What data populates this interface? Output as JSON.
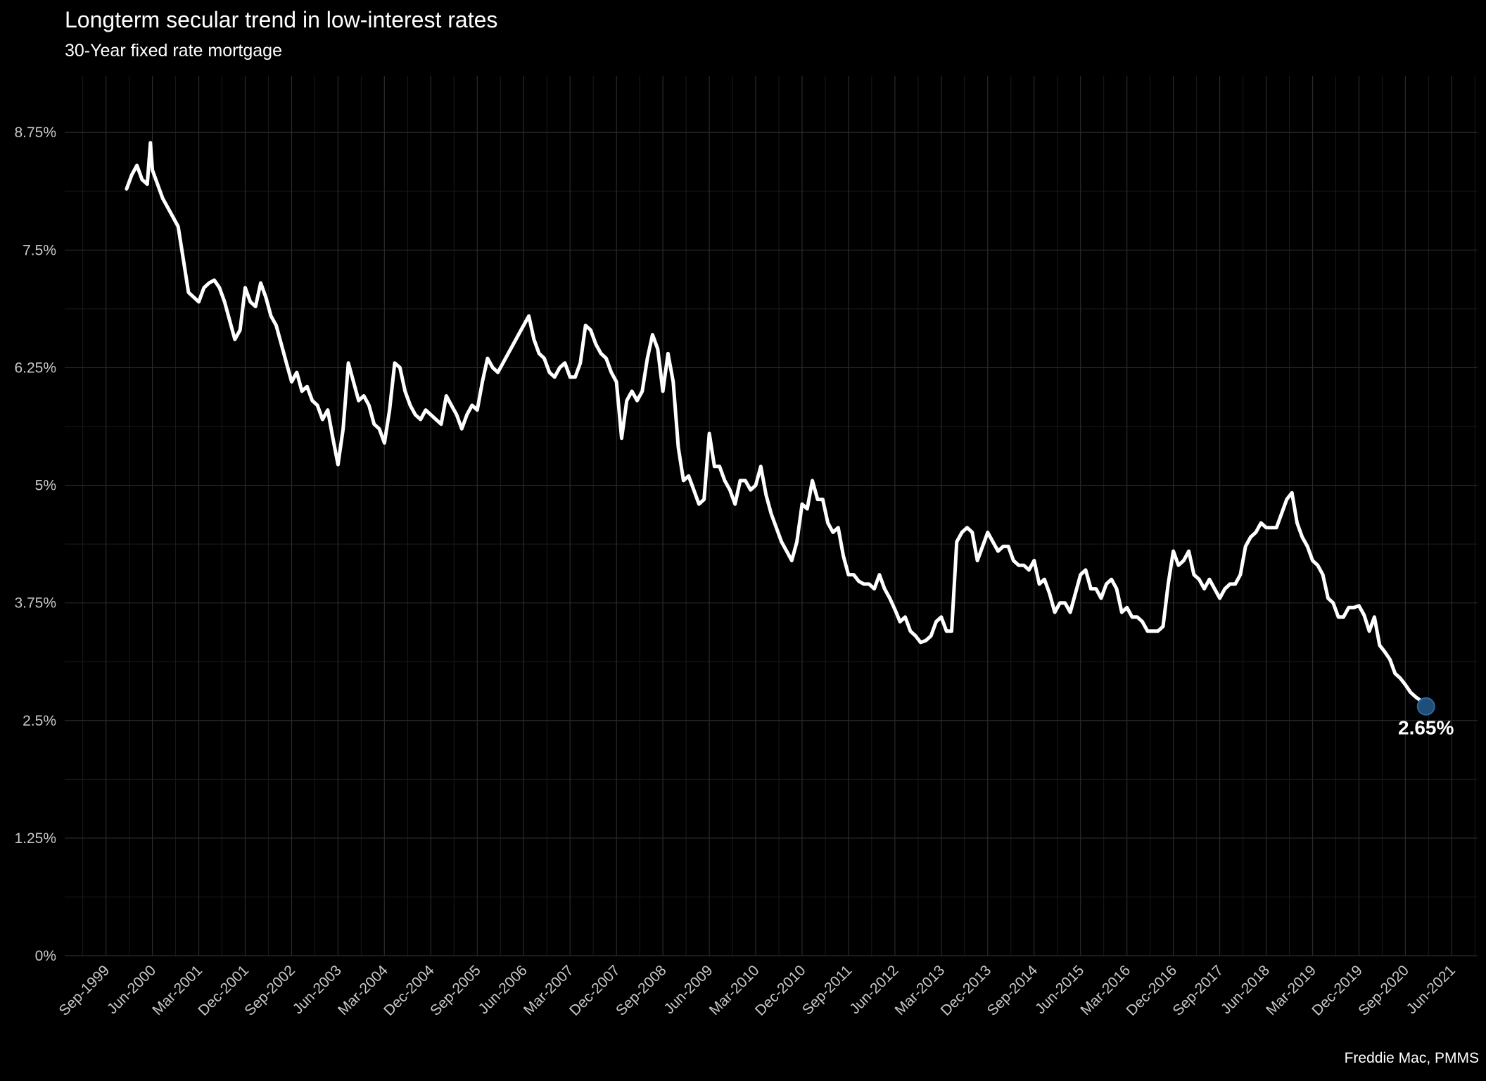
{
  "chart_data": {
    "type": "line",
    "title": "Longterm secular trend in low-interest rates",
    "subtitle": "30-Year fixed rate mortgage",
    "caption": "Freddie Mac, PMMS",
    "xlabel": "",
    "ylabel": "",
    "ylim": [
      0,
      9.35
    ],
    "xlim": [
      "1999-01",
      "2021-11"
    ],
    "y_ticks": [
      {
        "value": 0,
        "label": "0%"
      },
      {
        "value": 1.25,
        "label": "1.25%"
      },
      {
        "value": 2.5,
        "label": "2.5%"
      },
      {
        "value": 3.75,
        "label": "3.75%"
      },
      {
        "value": 5,
        "label": "5%"
      },
      {
        "value": 6.25,
        "label": "6.25%"
      },
      {
        "value": 7.5,
        "label": "7.5%"
      },
      {
        "value": 8.75,
        "label": "8.75%"
      }
    ],
    "x_ticks": [
      "Sep-1999",
      "Jun-2000",
      "Mar-2001",
      "Dec-2001",
      "Sep-2002",
      "Jun-2003",
      "Mar-2004",
      "Dec-2004",
      "Sep-2005",
      "Jun-2006",
      "Mar-2007",
      "Dec-2007",
      "Sep-2008",
      "Jun-2009",
      "Mar-2010",
      "Dec-2010",
      "Sep-2011",
      "Jun-2012",
      "Mar-2013",
      "Dec-2013",
      "Sep-2014",
      "Jun-2015",
      "Mar-2016",
      "Dec-2016",
      "Sep-2017",
      "Jun-2018",
      "Mar-2019",
      "Dec-2019",
      "Sep-2020",
      "Jun-2021"
    ],
    "grid": true,
    "series": [
      {
        "color": "#ffffff",
        "points": [
          [
            "2000-01",
            8.15
          ],
          [
            "2000-02",
            8.3
          ],
          [
            "2000-03",
            8.4
          ],
          [
            "2000-04",
            8.25
          ],
          [
            "2000-05",
            8.2
          ],
          [
            "2000-05-20",
            8.64
          ],
          [
            "2000-06",
            8.35
          ],
          [
            "2000-07",
            8.2
          ],
          [
            "2000-08",
            8.05
          ],
          [
            "2000-09",
            7.95
          ],
          [
            "2000-10",
            7.85
          ],
          [
            "2000-11",
            7.75
          ],
          [
            "2000-12",
            7.4
          ],
          [
            "2001-01",
            7.05
          ],
          [
            "2001-02",
            7.0
          ],
          [
            "2001-03",
            6.95
          ],
          [
            "2001-04",
            7.1
          ],
          [
            "2001-05",
            7.15
          ],
          [
            "2001-06",
            7.18
          ],
          [
            "2001-07",
            7.1
          ],
          [
            "2001-08",
            6.95
          ],
          [
            "2001-09",
            6.75
          ],
          [
            "2001-10",
            6.55
          ],
          [
            "2001-11",
            6.65
          ],
          [
            "2001-12",
            7.1
          ],
          [
            "2002-01",
            6.95
          ],
          [
            "2002-02",
            6.9
          ],
          [
            "2002-03",
            7.15
          ],
          [
            "2002-04",
            7.0
          ],
          [
            "2002-05",
            6.8
          ],
          [
            "2002-06",
            6.7
          ],
          [
            "2002-07",
            6.5
          ],
          [
            "2002-08",
            6.3
          ],
          [
            "2002-09",
            6.1
          ],
          [
            "2002-10",
            6.2
          ],
          [
            "2002-11",
            6.0
          ],
          [
            "2002-12",
            6.05
          ],
          [
            "2003-01",
            5.9
          ],
          [
            "2003-02",
            5.85
          ],
          [
            "2003-03",
            5.7
          ],
          [
            "2003-04",
            5.8
          ],
          [
            "2003-05",
            5.5
          ],
          [
            "2003-06",
            5.22
          ],
          [
            "2003-07",
            5.6
          ],
          [
            "2003-08",
            6.3
          ],
          [
            "2003-09",
            6.1
          ],
          [
            "2003-10",
            5.9
          ],
          [
            "2003-11",
            5.95
          ],
          [
            "2003-12",
            5.85
          ],
          [
            "2004-01",
            5.65
          ],
          [
            "2004-02",
            5.6
          ],
          [
            "2004-03",
            5.45
          ],
          [
            "2004-04",
            5.8
          ],
          [
            "2004-05",
            6.3
          ],
          [
            "2004-06",
            6.25
          ],
          [
            "2004-07",
            6.0
          ],
          [
            "2004-08",
            5.85
          ],
          [
            "2004-09",
            5.75
          ],
          [
            "2004-10",
            5.7
          ],
          [
            "2004-11",
            5.8
          ],
          [
            "2004-12",
            5.75
          ],
          [
            "2005-01",
            5.7
          ],
          [
            "2005-02",
            5.65
          ],
          [
            "2005-03",
            5.95
          ],
          [
            "2005-04",
            5.85
          ],
          [
            "2005-05",
            5.75
          ],
          [
            "2005-06",
            5.6
          ],
          [
            "2005-07",
            5.75
          ],
          [
            "2005-08",
            5.85
          ],
          [
            "2005-09",
            5.8
          ],
          [
            "2005-10",
            6.1
          ],
          [
            "2005-11",
            6.35
          ],
          [
            "2005-12",
            6.25
          ],
          [
            "2006-01",
            6.2
          ],
          [
            "2006-02",
            6.3
          ],
          [
            "2006-03",
            6.4
          ],
          [
            "2006-04",
            6.5
          ],
          [
            "2006-05",
            6.6
          ],
          [
            "2006-06",
            6.7
          ],
          [
            "2006-07",
            6.8
          ],
          [
            "2006-08",
            6.55
          ],
          [
            "2006-09",
            6.4
          ],
          [
            "2006-10",
            6.35
          ],
          [
            "2006-11",
            6.2
          ],
          [
            "2006-12",
            6.15
          ],
          [
            "2007-01",
            6.25
          ],
          [
            "2007-02",
            6.3
          ],
          [
            "2007-03",
            6.15
          ],
          [
            "2007-04",
            6.15
          ],
          [
            "2007-05",
            6.3
          ],
          [
            "2007-06",
            6.7
          ],
          [
            "2007-07",
            6.65
          ],
          [
            "2007-08",
            6.5
          ],
          [
            "2007-09",
            6.4
          ],
          [
            "2007-10",
            6.35
          ],
          [
            "2007-11",
            6.2
          ],
          [
            "2007-12",
            6.1
          ],
          [
            "2008-01",
            5.5
          ],
          [
            "2008-02",
            5.9
          ],
          [
            "2008-03",
            6.0
          ],
          [
            "2008-04",
            5.9
          ],
          [
            "2008-05",
            6.0
          ],
          [
            "2008-06",
            6.35
          ],
          [
            "2008-07",
            6.6
          ],
          [
            "2008-08",
            6.45
          ],
          [
            "2008-09",
            6.0
          ],
          [
            "2008-10",
            6.4
          ],
          [
            "2008-11",
            6.1
          ],
          [
            "2008-12",
            5.4
          ],
          [
            "2009-01",
            5.05
          ],
          [
            "2009-02",
            5.1
          ],
          [
            "2009-03",
            4.95
          ],
          [
            "2009-04",
            4.8
          ],
          [
            "2009-05",
            4.85
          ],
          [
            "2009-06",
            5.55
          ],
          [
            "2009-07",
            5.2
          ],
          [
            "2009-08",
            5.2
          ],
          [
            "2009-09",
            5.05
          ],
          [
            "2009-10",
            4.95
          ],
          [
            "2009-11",
            4.8
          ],
          [
            "2009-12",
            5.05
          ],
          [
            "2010-01",
            5.05
          ],
          [
            "2010-02",
            4.95
          ],
          [
            "2010-03",
            5.0
          ],
          [
            "2010-04",
            5.2
          ],
          [
            "2010-05",
            4.9
          ],
          [
            "2010-06",
            4.7
          ],
          [
            "2010-07",
            4.55
          ],
          [
            "2010-08",
            4.4
          ],
          [
            "2010-09",
            4.3
          ],
          [
            "2010-10",
            4.2
          ],
          [
            "2010-11",
            4.4
          ],
          [
            "2010-12",
            4.8
          ],
          [
            "2011-01",
            4.75
          ],
          [
            "2011-02",
            5.05
          ],
          [
            "2011-03",
            4.85
          ],
          [
            "2011-04",
            4.85
          ],
          [
            "2011-05",
            4.6
          ],
          [
            "2011-06",
            4.5
          ],
          [
            "2011-07",
            4.55
          ],
          [
            "2011-08",
            4.25
          ],
          [
            "2011-09",
            4.05
          ],
          [
            "2011-10",
            4.05
          ],
          [
            "2011-11",
            3.98
          ],
          [
            "2011-12",
            3.95
          ],
          [
            "2012-01",
            3.95
          ],
          [
            "2012-02",
            3.9
          ],
          [
            "2012-03",
            4.05
          ],
          [
            "2012-04",
            3.9
          ],
          [
            "2012-05",
            3.8
          ],
          [
            "2012-06",
            3.68
          ],
          [
            "2012-07",
            3.55
          ],
          [
            "2012-08",
            3.6
          ],
          [
            "2012-09",
            3.45
          ],
          [
            "2012-10",
            3.4
          ],
          [
            "2012-11",
            3.33
          ],
          [
            "2012-12",
            3.35
          ],
          [
            "2013-01",
            3.4
          ],
          [
            "2013-02",
            3.55
          ],
          [
            "2013-03",
            3.6
          ],
          [
            "2013-04",
            3.45
          ],
          [
            "2013-05",
            3.45
          ],
          [
            "2013-06",
            4.4
          ],
          [
            "2013-07",
            4.5
          ],
          [
            "2013-08",
            4.55
          ],
          [
            "2013-09",
            4.5
          ],
          [
            "2013-10",
            4.2
          ],
          [
            "2013-11",
            4.35
          ],
          [
            "2013-12",
            4.5
          ],
          [
            "2014-01",
            4.4
          ],
          [
            "2014-02",
            4.3
          ],
          [
            "2014-03",
            4.35
          ],
          [
            "2014-04",
            4.35
          ],
          [
            "2014-05",
            4.2
          ],
          [
            "2014-06",
            4.15
          ],
          [
            "2014-07",
            4.15
          ],
          [
            "2014-08",
            4.1
          ],
          [
            "2014-09",
            4.2
          ],
          [
            "2014-10",
            3.95
          ],
          [
            "2014-11",
            4.0
          ],
          [
            "2014-12",
            3.85
          ],
          [
            "2015-01",
            3.65
          ],
          [
            "2015-02",
            3.75
          ],
          [
            "2015-03",
            3.75
          ],
          [
            "2015-04",
            3.65
          ],
          [
            "2015-05",
            3.85
          ],
          [
            "2015-06",
            4.05
          ],
          [
            "2015-07",
            4.1
          ],
          [
            "2015-08",
            3.9
          ],
          [
            "2015-09",
            3.9
          ],
          [
            "2015-10",
            3.8
          ],
          [
            "2015-11",
            3.95
          ],
          [
            "2015-12",
            4.0
          ],
          [
            "2016-01",
            3.9
          ],
          [
            "2016-02",
            3.65
          ],
          [
            "2016-03",
            3.7
          ],
          [
            "2016-04",
            3.6
          ],
          [
            "2016-05",
            3.6
          ],
          [
            "2016-06",
            3.55
          ],
          [
            "2016-07",
            3.45
          ],
          [
            "2016-08",
            3.45
          ],
          [
            "2016-09",
            3.45
          ],
          [
            "2016-10",
            3.5
          ],
          [
            "2016-11",
            3.95
          ],
          [
            "2016-12",
            4.3
          ],
          [
            "2017-01",
            4.15
          ],
          [
            "2017-02",
            4.2
          ],
          [
            "2017-03",
            4.3
          ],
          [
            "2017-04",
            4.05
          ],
          [
            "2017-05",
            4.0
          ],
          [
            "2017-06",
            3.9
          ],
          [
            "2017-07",
            4.0
          ],
          [
            "2017-08",
            3.9
          ],
          [
            "2017-09",
            3.8
          ],
          [
            "2017-10",
            3.9
          ],
          [
            "2017-11",
            3.95
          ],
          [
            "2017-12",
            3.95
          ],
          [
            "2018-01",
            4.05
          ],
          [
            "2018-02",
            4.35
          ],
          [
            "2018-03",
            4.45
          ],
          [
            "2018-04",
            4.5
          ],
          [
            "2018-05",
            4.6
          ],
          [
            "2018-06",
            4.55
          ],
          [
            "2018-07",
            4.55
          ],
          [
            "2018-08",
            4.55
          ],
          [
            "2018-09",
            4.7
          ],
          [
            "2018-10",
            4.85
          ],
          [
            "2018-11",
            4.92
          ],
          [
            "2018-12",
            4.6
          ],
          [
            "2019-01",
            4.45
          ],
          [
            "2019-02",
            4.35
          ],
          [
            "2019-03",
            4.2
          ],
          [
            "2019-04",
            4.15
          ],
          [
            "2019-05",
            4.05
          ],
          [
            "2019-06",
            3.8
          ],
          [
            "2019-07",
            3.75
          ],
          [
            "2019-08",
            3.6
          ],
          [
            "2019-09",
            3.6
          ],
          [
            "2019-10",
            3.7
          ],
          [
            "2019-11",
            3.7
          ],
          [
            "2019-12",
            3.72
          ],
          [
            "2020-01",
            3.62
          ],
          [
            "2020-02",
            3.45
          ],
          [
            "2020-03",
            3.6
          ],
          [
            "2020-04",
            3.3
          ],
          [
            "2020-05",
            3.23
          ],
          [
            "2020-06",
            3.15
          ],
          [
            "2020-07",
            3.0
          ],
          [
            "2020-08",
            2.95
          ],
          [
            "2020-09",
            2.88
          ],
          [
            "2020-10",
            2.8
          ],
          [
            "2020-11",
            2.75
          ],
          [
            "2020-12",
            2.71
          ],
          [
            "2021-01",
            2.65
          ]
        ]
      }
    ],
    "end_point": {
      "x": "2021-01",
      "y": 2.65,
      "label": "2.65%",
      "color": "#1f4e79"
    }
  }
}
